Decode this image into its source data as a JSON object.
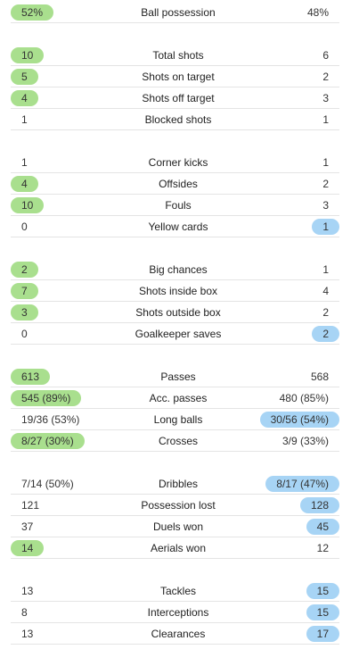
{
  "colors": {
    "home_highlight": "#a9df8e",
    "away_highlight": "#a7d4f5",
    "divider": "#e4e4e4"
  },
  "groups": [
    {
      "rows": [
        {
          "label": "Ball possession",
          "home": "52%",
          "away": "48%",
          "highlight": "home"
        }
      ]
    },
    {
      "rows": [
        {
          "label": "Total shots",
          "home": "10",
          "away": "6",
          "highlight": "home"
        },
        {
          "label": "Shots on target",
          "home": "5",
          "away": "2",
          "highlight": "home"
        },
        {
          "label": "Shots off target",
          "home": "4",
          "away": "3",
          "highlight": "home"
        },
        {
          "label": "Blocked shots",
          "home": "1",
          "away": "1",
          "highlight": "none"
        }
      ]
    },
    {
      "rows": [
        {
          "label": "Corner kicks",
          "home": "1",
          "away": "1",
          "highlight": "none"
        },
        {
          "label": "Offsides",
          "home": "4",
          "away": "2",
          "highlight": "home"
        },
        {
          "label": "Fouls",
          "home": "10",
          "away": "3",
          "highlight": "home"
        },
        {
          "label": "Yellow cards",
          "home": "0",
          "away": "1",
          "highlight": "away"
        }
      ]
    },
    {
      "rows": [
        {
          "label": "Big chances",
          "home": "2",
          "away": "1",
          "highlight": "home"
        },
        {
          "label": "Shots inside box",
          "home": "7",
          "away": "4",
          "highlight": "home"
        },
        {
          "label": "Shots outside box",
          "home": "3",
          "away": "2",
          "highlight": "home"
        },
        {
          "label": "Goalkeeper saves",
          "home": "0",
          "away": "2",
          "highlight": "away"
        }
      ]
    },
    {
      "rows": [
        {
          "label": "Passes",
          "home": "613",
          "away": "568",
          "highlight": "home"
        },
        {
          "label": "Acc. passes",
          "home": "545 (89%)",
          "away": "480 (85%)",
          "highlight": "home"
        },
        {
          "label": "Long balls",
          "home": "19/36 (53%)",
          "away": "30/56 (54%)",
          "highlight": "away"
        },
        {
          "label": "Crosses",
          "home": "8/27 (30%)",
          "away": "3/9 (33%)",
          "highlight": "home"
        }
      ]
    },
    {
      "rows": [
        {
          "label": "Dribbles",
          "home": "7/14 (50%)",
          "away": "8/17 (47%)",
          "highlight": "away"
        },
        {
          "label": "Possession lost",
          "home": "121",
          "away": "128",
          "highlight": "away"
        },
        {
          "label": "Duels won",
          "home": "37",
          "away": "45",
          "highlight": "away"
        },
        {
          "label": "Aerials won",
          "home": "14",
          "away": "12",
          "highlight": "home"
        }
      ]
    },
    {
      "rows": [
        {
          "label": "Tackles",
          "home": "13",
          "away": "15",
          "highlight": "away"
        },
        {
          "label": "Interceptions",
          "home": "8",
          "away": "15",
          "highlight": "away"
        },
        {
          "label": "Clearances",
          "home": "13",
          "away": "17",
          "highlight": "away"
        }
      ]
    }
  ]
}
